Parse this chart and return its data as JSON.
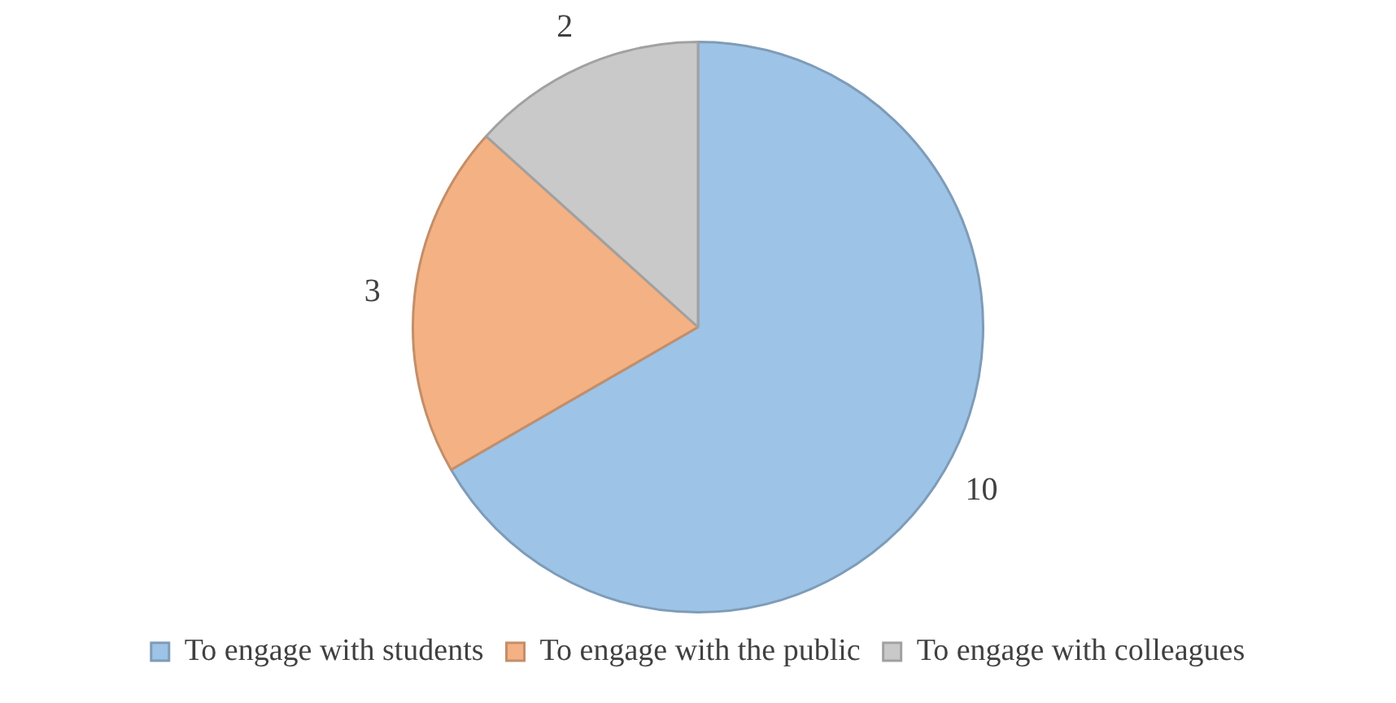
{
  "chart_data": {
    "type": "pie",
    "categories": [
      "To engage with students",
      "To engage with the public",
      "To engage with colleagues"
    ],
    "values": [
      10,
      3,
      2
    ],
    "colors": [
      "#9dc3e6",
      "#f4b183",
      "#c9c9c9"
    ],
    "data_labels": true,
    "legend": "bottom"
  }
}
